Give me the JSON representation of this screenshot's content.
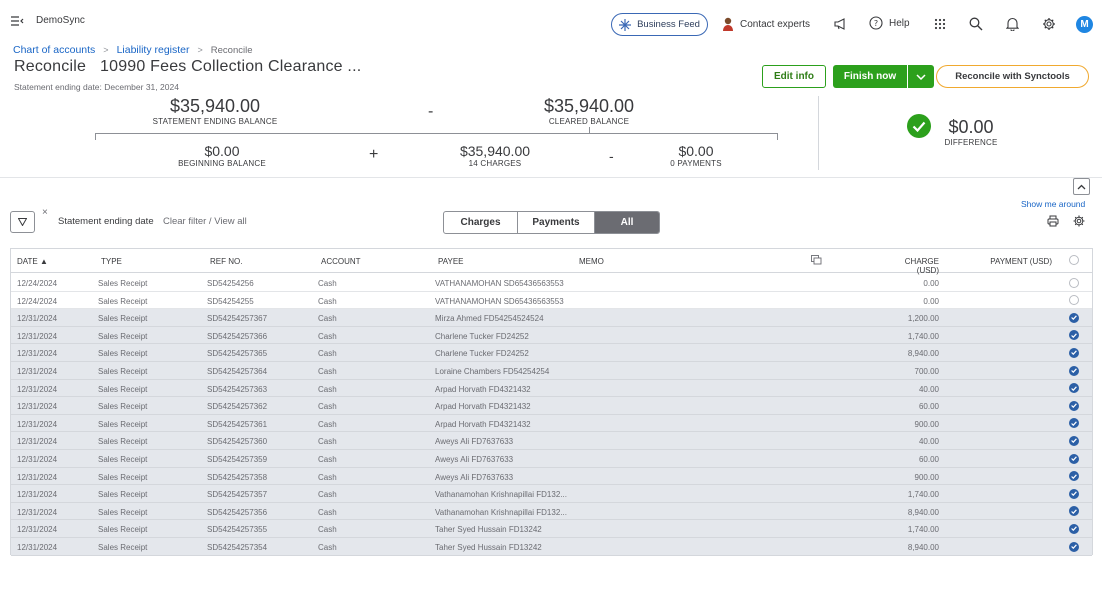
{
  "app": {
    "name": "DemoSync"
  },
  "topbar": {
    "business_feed": "Business Feed",
    "contact_experts": "Contact experts",
    "help": "Help",
    "avatar_initial": "M"
  },
  "breadcrumb": {
    "chart_of_accounts": "Chart of accounts",
    "liability_register": "Liability register",
    "reconcile": "Reconcile",
    "separator": ">"
  },
  "header": {
    "title": "Reconcile   10990 Fees Collection Clearance ...",
    "subtitle": "Statement ending date: December 31, 2024",
    "edit_info": "Edit info",
    "finish_now": "Finish now",
    "reconcile_synctools": "Reconcile with Synctools"
  },
  "summary": {
    "statement_ending_balance": {
      "amount": "$35,940.00",
      "label": "STATEMENT ENDING BALANCE"
    },
    "minus1": "-",
    "cleared_balance": {
      "amount": "$35,940.00",
      "label": "CLEARED BALANCE"
    },
    "beginning_balance": {
      "amount": "$0.00",
      "label": "BEGINNING BALANCE"
    },
    "plus": "+",
    "charges": {
      "amount": "$35,940.00",
      "label": "14 CHARGES"
    },
    "minus2": "-",
    "payments": {
      "amount": "$0.00",
      "label": "0 PAYMENTS"
    },
    "difference": {
      "amount": "$0.00",
      "label": "DIFFERENCE"
    }
  },
  "filters": {
    "filter_text": "Statement ending date",
    "clear_text": "Clear filter / View all",
    "close": "×",
    "show_me_around": "Show me around",
    "segments": [
      "Charges",
      "Payments",
      "All"
    ],
    "selected_segment": "All"
  },
  "table": {
    "headers": {
      "date": "DATE ▲",
      "type": "TYPE",
      "ref": "REF NO.",
      "account": "ACCOUNT",
      "payee": "PAYEE",
      "memo": "MEMO",
      "charge": "CHARGE (USD)",
      "payment": "PAYMENT (USD)"
    },
    "rows": [
      {
        "date": "12/24/2024",
        "type": "Sales Receipt",
        "ref": "SD54254256",
        "account": "Cash",
        "payee": "VATHANAMOHAN SD65436563553",
        "memo": "",
        "charge": "0.00",
        "payment": "",
        "cleared": false
      },
      {
        "date": "12/24/2024",
        "type": "Sales Receipt",
        "ref": "SD54254255",
        "account": "Cash",
        "payee": "VATHANAMOHAN SD65436563553",
        "memo": "",
        "charge": "0.00",
        "payment": "",
        "cleared": false
      },
      {
        "date": "12/31/2024",
        "type": "Sales Receipt",
        "ref": "SD54254257367",
        "account": "Cash",
        "payee": "Mirza Ahmed FD54254524524",
        "memo": "",
        "charge": "1,200.00",
        "payment": "",
        "cleared": true
      },
      {
        "date": "12/31/2024",
        "type": "Sales Receipt",
        "ref": "SD54254257366",
        "account": "Cash",
        "payee": "Charlene Tucker FD24252",
        "memo": "",
        "charge": "1,740.00",
        "payment": "",
        "cleared": true
      },
      {
        "date": "12/31/2024",
        "type": "Sales Receipt",
        "ref": "SD54254257365",
        "account": "Cash",
        "payee": "Charlene Tucker FD24252",
        "memo": "",
        "charge": "8,940.00",
        "payment": "",
        "cleared": true
      },
      {
        "date": "12/31/2024",
        "type": "Sales Receipt",
        "ref": "SD54254257364",
        "account": "Cash",
        "payee": "Loraine Chambers FD54254254",
        "memo": "",
        "charge": "700.00",
        "payment": "",
        "cleared": true
      },
      {
        "date": "12/31/2024",
        "type": "Sales Receipt",
        "ref": "SD54254257363",
        "account": "Cash",
        "payee": "Arpad Horvath FD4321432",
        "memo": "",
        "charge": "40.00",
        "payment": "",
        "cleared": true
      },
      {
        "date": "12/31/2024",
        "type": "Sales Receipt",
        "ref": "SD54254257362",
        "account": "Cash",
        "payee": "Arpad Horvath FD4321432",
        "memo": "",
        "charge": "60.00",
        "payment": "",
        "cleared": true
      },
      {
        "date": "12/31/2024",
        "type": "Sales Receipt",
        "ref": "SD54254257361",
        "account": "Cash",
        "payee": "Arpad Horvath FD4321432",
        "memo": "",
        "charge": "900.00",
        "payment": "",
        "cleared": true
      },
      {
        "date": "12/31/2024",
        "type": "Sales Receipt",
        "ref": "SD54254257360",
        "account": "Cash",
        "payee": "Aweys Ali FD7637633",
        "memo": "",
        "charge": "40.00",
        "payment": "",
        "cleared": true
      },
      {
        "date": "12/31/2024",
        "type": "Sales Receipt",
        "ref": "SD54254257359",
        "account": "Cash",
        "payee": "Aweys Ali FD7637633",
        "memo": "",
        "charge": "60.00",
        "payment": "",
        "cleared": true
      },
      {
        "date": "12/31/2024",
        "type": "Sales Receipt",
        "ref": "SD54254257358",
        "account": "Cash",
        "payee": "Aweys Ali FD7637633",
        "memo": "",
        "charge": "900.00",
        "payment": "",
        "cleared": true
      },
      {
        "date": "12/31/2024",
        "type": "Sales Receipt",
        "ref": "SD54254257357",
        "account": "Cash",
        "payee": "Vathanamohan Krishnapillai FD132...",
        "memo": "",
        "charge": "1,740.00",
        "payment": "",
        "cleared": true
      },
      {
        "date": "12/31/2024",
        "type": "Sales Receipt",
        "ref": "SD54254257356",
        "account": "Cash",
        "payee": "Vathanamohan Krishnapillai FD132...",
        "memo": "",
        "charge": "8,940.00",
        "payment": "",
        "cleared": true
      },
      {
        "date": "12/31/2024",
        "type": "Sales Receipt",
        "ref": "SD54254257355",
        "account": "Cash",
        "payee": "Taher Syed Hussain FD13242",
        "memo": "",
        "charge": "1,740.00",
        "payment": "",
        "cleared": true
      },
      {
        "date": "12/31/2024",
        "type": "Sales Receipt",
        "ref": "SD54254257354",
        "account": "Cash",
        "payee": "Taher Syed Hussain FD13242",
        "memo": "",
        "charge": "8,940.00",
        "payment": "",
        "cleared": true
      }
    ]
  },
  "colors": {
    "green": "#2ca01c",
    "link_blue": "#1a66c6",
    "check_blue": "#2b5fa6",
    "selected_row": "#e4e7ec",
    "orange_border": "#f0a92f"
  }
}
